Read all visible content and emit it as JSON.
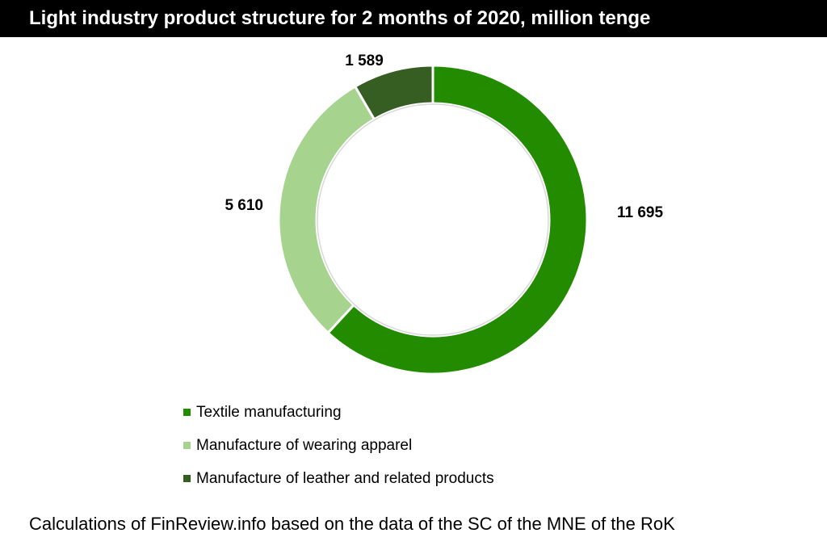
{
  "title": "Light industry product structure for 2 months of 2020, million tenge",
  "source_note": "Calculations of FinReview.info based on the data of the SC of the MNE of the RoK",
  "chart_data": {
    "type": "pie",
    "subtype": "donut",
    "title": "Light industry product structure for 2 months of 2020, million tenge",
    "categories": [
      "Textile manufacturing",
      "Manufacture of wearing apparel",
      "Manufacture of leather and related products"
    ],
    "values": [
      11695,
      5610,
      1589
    ],
    "value_labels": [
      "11 695",
      "5 610",
      "1 589"
    ],
    "colors": [
      "#228B00",
      "#A6D38D",
      "#365E22"
    ],
    "legend_position": "bottom"
  }
}
